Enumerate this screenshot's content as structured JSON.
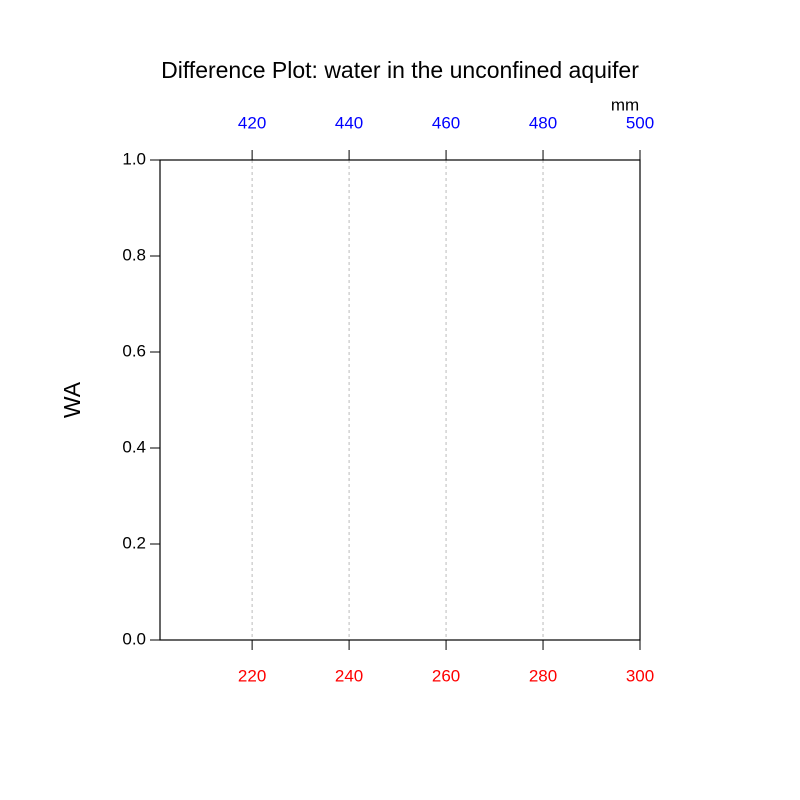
{
  "chart_data": {
    "type": "line",
    "title": "Difference Plot: water in the unconfined aquifer",
    "ylabel": "WA",
    "x2label": "mm",
    "xlim": [
      201,
      300
    ],
    "xticks": [
      220,
      240,
      260,
      280,
      300
    ],
    "xcolor": "#ff0000",
    "x2lim": [
      401,
      500
    ],
    "x2ticks": [
      420,
      440,
      460,
      480,
      500
    ],
    "x2color": "#0000ff",
    "ylim": [
      0,
      1
    ],
    "yticks": [
      {
        "value": 0,
        "label": "0.0"
      },
      0.2,
      0.4,
      0.6,
      0.8,
      {
        "value": 1,
        "label": "1.0"
      }
    ],
    "grid": "x",
    "series": []
  }
}
